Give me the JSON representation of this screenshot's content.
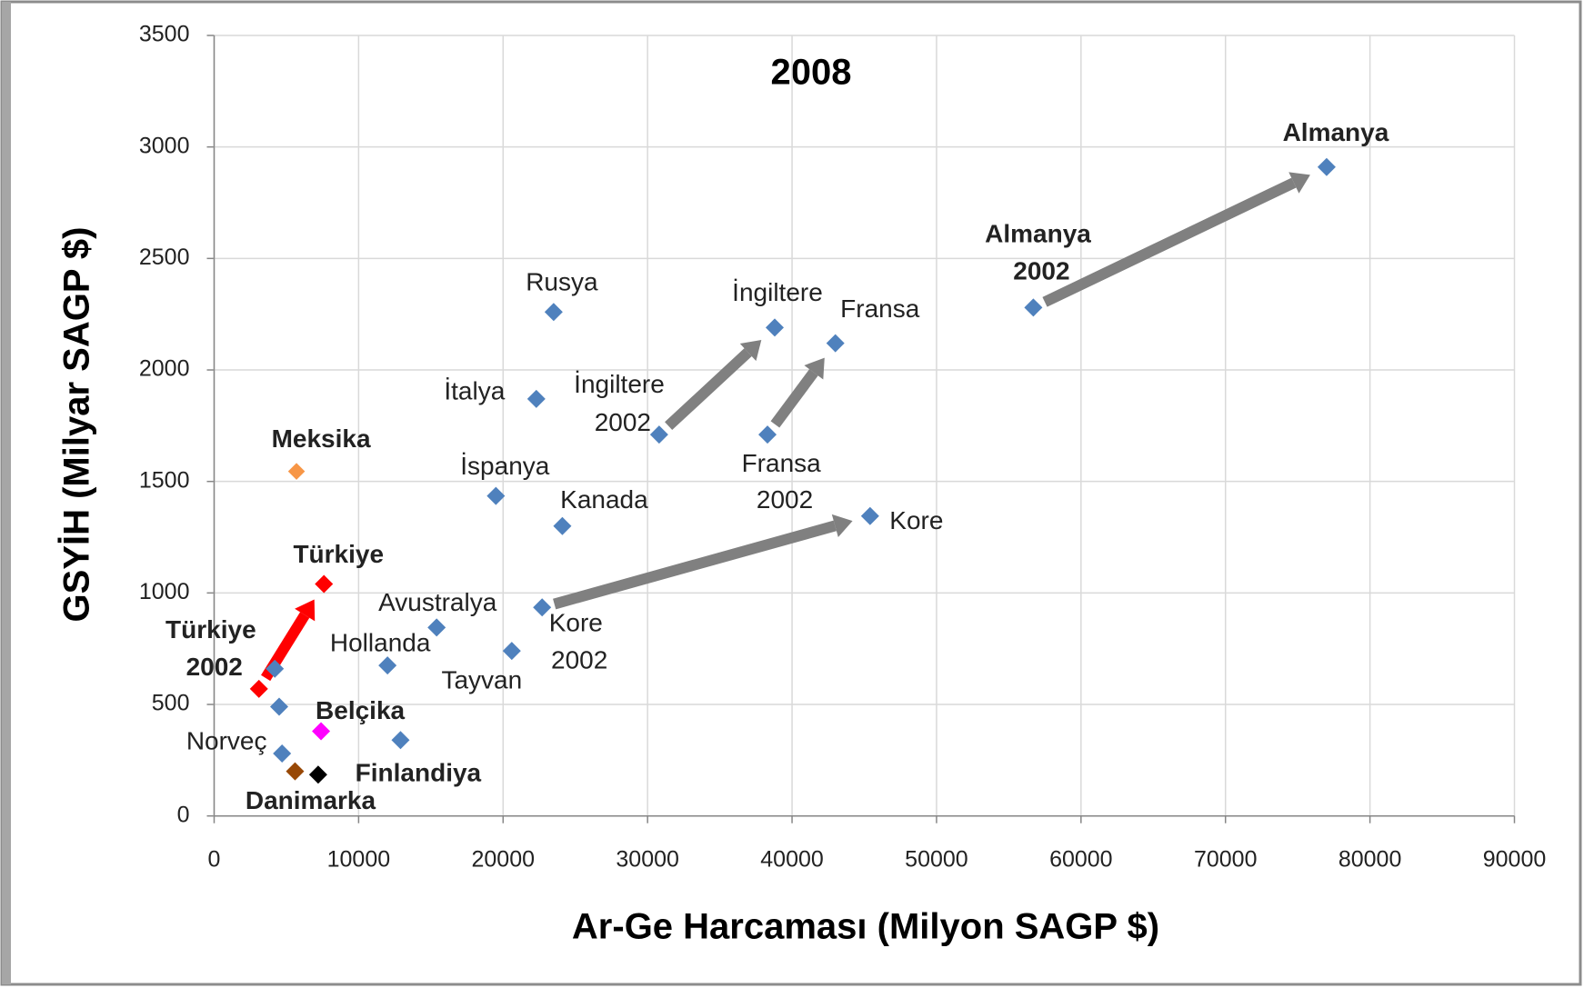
{
  "chart_data": {
    "type": "scatter",
    "title": "2008",
    "xlabel": "Ar-Ge Harcaması (Milyon SAGP $)",
    "ylabel": "GSYİH (Milyar SAGP $)",
    "x": [
      77000,
      56700,
      43000,
      38800,
      23500,
      22300,
      30800,
      38300,
      19500,
      24100,
      45400,
      5700,
      7600,
      3100,
      22700,
      15400,
      20600,
      12000,
      4200,
      4500,
      7400,
      12900,
      4700,
      5600,
      7200
    ],
    "values": [
      2910,
      2280,
      2120,
      2190,
      2260,
      1870,
      1710,
      1710,
      1435,
      1300,
      1345,
      1545,
      1040,
      570,
      935,
      845,
      740,
      675,
      660,
      490,
      380,
      340,
      280,
      200,
      185
    ],
    "labels": [
      "Almanya",
      "Almanya 2002",
      "Fransa",
      "İngiltere",
      "Rusya",
      "İtalya",
      "İngiltere 2002",
      "Fransa 2002",
      "İspanya",
      "Kanada",
      "Kore",
      "Meksika",
      "Türkiye",
      "Türkiye 2002",
      "Kore 2002",
      "Avustralya",
      "Tayvan",
      "Hollanda",
      null,
      null,
      "Belçika",
      null,
      "Norveç",
      "Danimarka",
      "Finlandiya"
    ],
    "colors": [
      "#4f81bd",
      "#4f81bd",
      "#4f81bd",
      "#4f81bd",
      "#4f81bd",
      "#4f81bd",
      "#4f81bd",
      "#4f81bd",
      "#4f81bd",
      "#4f81bd",
      "#4f81bd",
      "#f79646",
      "#ff0000",
      "#ff0000",
      "#4f81bd",
      "#4f81bd",
      "#4f81bd",
      "#4f81bd",
      "#4f81bd",
      "#4f81bd",
      "#ff00ff",
      "#4f81bd",
      "#4f81bd",
      "#984806",
      "#000000"
    ],
    "label_colors": [
      "#9bbb59",
      "#9bbb59",
      null,
      null,
      null,
      null,
      null,
      null,
      null,
      null,
      null,
      "#f79646",
      "#ff0000",
      "#ff0000",
      null,
      null,
      null,
      null,
      null,
      null,
      "#ff00ff",
      null,
      null,
      "#984806",
      "#000000"
    ],
    "xlim": [
      0,
      90000
    ],
    "xticks": [
      0,
      10000,
      20000,
      30000,
      40000,
      50000,
      60000,
      70000,
      80000,
      90000
    ],
    "ylim": [
      0,
      3500
    ],
    "yticks": [
      0,
      500,
      1000,
      1500,
      2000,
      2500,
      3000,
      3500
    ],
    "grid": true
  }
}
